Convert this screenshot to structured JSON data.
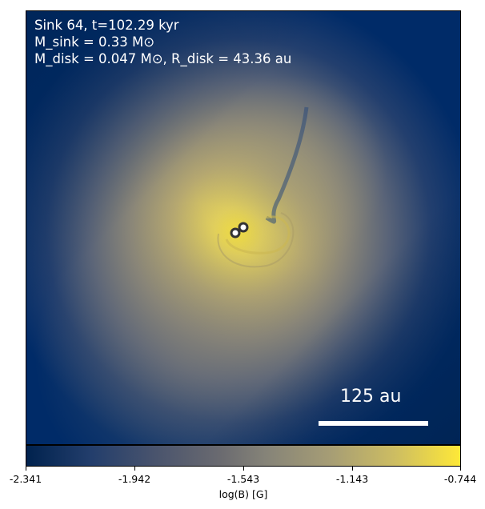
{
  "image": {
    "title_line1": "Sink 64, t=102.29 kyr",
    "title_line2": "M_sink = 0.33 M⊙",
    "title_line3": "M_disk = 0.047 M⊙, R_disk = 43.36 au",
    "scale_bar_label": "125 au"
  },
  "colorbar": {
    "label": "log(B) [G]",
    "colormap": "cividis",
    "ticks": [
      "-2.341",
      "-1.942",
      "-1.543",
      "-1.143",
      "-0.744"
    ],
    "min": -2.341,
    "max": -0.744
  },
  "colors": {
    "field_low": "#00224e",
    "field_mid": "#7c7b78",
    "field_high": "#fee838",
    "text": "#ffffff"
  }
}
